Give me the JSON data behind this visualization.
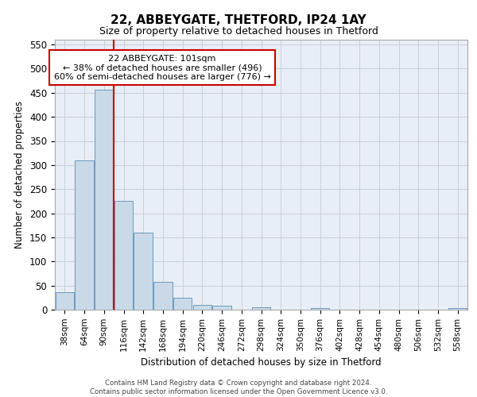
{
  "title1": "22, ABBEYGATE, THETFORD, IP24 1AY",
  "title2": "Size of property relative to detached houses in Thetford",
  "xlabel": "Distribution of detached houses by size in Thetford",
  "ylabel": "Number of detached properties",
  "categories": [
    "38sqm",
    "64sqm",
    "90sqm",
    "116sqm",
    "142sqm",
    "168sqm",
    "194sqm",
    "220sqm",
    "246sqm",
    "272sqm",
    "298sqm",
    "324sqm",
    "350sqm",
    "376sqm",
    "402sqm",
    "428sqm",
    "454sqm",
    "480sqm",
    "506sqm",
    "532sqm",
    "558sqm"
  ],
  "values": [
    37,
    310,
    456,
    226,
    159,
    58,
    25,
    10,
    8,
    0,
    5,
    0,
    0,
    3,
    0,
    0,
    0,
    0,
    0,
    0,
    3
  ],
  "bar_color": "#c9d9e8",
  "bar_edge_color": "#5b8db8",
  "vline_color": "#cc0000",
  "annotation_text": "22 ABBEYGATE: 101sqm\n← 38% of detached houses are smaller (496)\n60% of semi-detached houses are larger (776) →",
  "annotation_box_color": "#ffffff",
  "annotation_box_edge_color": "#cc0000",
  "ylim": [
    0,
    560
  ],
  "yticks": [
    0,
    50,
    100,
    150,
    200,
    250,
    300,
    350,
    400,
    450,
    500,
    550
  ],
  "footer_text": "Contains HM Land Registry data © Crown copyright and database right 2024.\nContains public sector information licensed under the Open Government Licence v3.0.",
  "grid_color": "#c8d0dc",
  "bg_color": "#e8eef5"
}
